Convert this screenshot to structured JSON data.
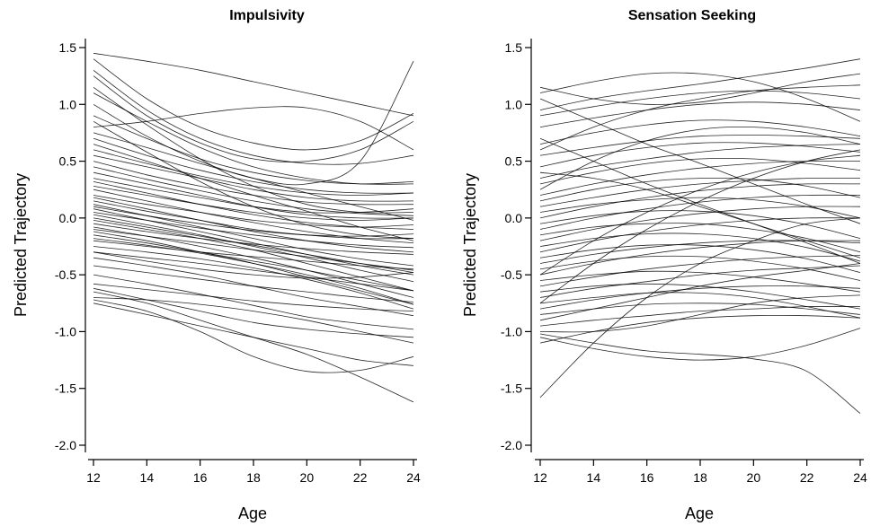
{
  "chart_data": [
    {
      "type": "line",
      "title": "Impulsivity",
      "xlabel": "Age",
      "ylabel": "Predicted Trajectory",
      "xlim": [
        12,
        24
      ],
      "ylim": [
        -2.0,
        1.5
      ],
      "x_ticks": [
        12,
        14,
        16,
        18,
        20,
        22,
        24
      ],
      "y_ticks": [
        1.5,
        1.0,
        0.5,
        0.0,
        -0.5,
        -1.0,
        -1.5,
        -2.0
      ],
      "y_tick_labels": [
        "1.5",
        "1.0",
        "0.5",
        "0.0",
        "-0.5",
        "-1.0",
        "-1.5",
        "-2.0"
      ],
      "grid": false,
      "x": [
        12,
        14,
        16,
        18,
        20,
        22,
        24
      ],
      "series": [
        {
          "values": [
            1.45,
            1.38,
            1.3,
            1.2,
            1.1,
            1.0,
            0.9
          ]
        },
        {
          "values": [
            1.4,
            1.05,
            0.8,
            0.66,
            0.6,
            0.68,
            0.92
          ]
        },
        {
          "values": [
            1.3,
            0.95,
            0.7,
            0.55,
            0.48,
            0.48,
            0.55
          ]
        },
        {
          "values": [
            1.25,
            0.9,
            0.66,
            0.52,
            0.5,
            0.6,
            0.85
          ]
        },
        {
          "values": [
            0.8,
            0.85,
            0.92,
            0.97,
            0.97,
            0.85,
            0.6
          ]
        },
        {
          "values": [
            1.0,
            0.72,
            0.5,
            0.35,
            0.3,
            0.5,
            1.38
          ]
        },
        {
          "values": [
            0.9,
            0.7,
            0.52,
            0.4,
            0.33,
            0.3,
            0.32
          ]
        },
        {
          "values": [
            0.7,
            0.55,
            0.42,
            0.32,
            0.25,
            0.22,
            0.22
          ]
        },
        {
          "values": [
            0.6,
            0.48,
            0.37,
            0.28,
            0.22,
            0.2,
            0.22
          ]
        },
        {
          "values": [
            0.55,
            0.45,
            0.35,
            0.25,
            0.18,
            0.15,
            0.15
          ]
        },
        {
          "values": [
            0.5,
            0.38,
            0.28,
            0.2,
            0.14,
            0.12,
            0.12
          ]
        },
        {
          "values": [
            0.45,
            0.34,
            0.24,
            0.15,
            0.08,
            0.04,
            0.02
          ]
        },
        {
          "values": [
            0.4,
            0.3,
            0.2,
            0.1,
            0.03,
            0.0,
            0.0
          ]
        },
        {
          "values": [
            0.35,
            0.26,
            0.18,
            0.1,
            0.05,
            0.05,
            0.08
          ]
        },
        {
          "values": [
            0.32,
            0.22,
            0.12,
            0.03,
            -0.04,
            -0.08,
            -0.1
          ]
        },
        {
          "values": [
            0.28,
            0.2,
            0.12,
            0.05,
            0.0,
            -0.02,
            0.0
          ]
        },
        {
          "values": [
            0.25,
            0.15,
            0.05,
            -0.04,
            -0.12,
            -0.18,
            -0.22
          ]
        },
        {
          "values": [
            0.2,
            0.12,
            0.05,
            -0.02,
            -0.06,
            -0.08,
            -0.06
          ]
        },
        {
          "values": [
            0.18,
            0.08,
            -0.02,
            -0.12,
            -0.2,
            -0.26,
            -0.3
          ]
        },
        {
          "values": [
            0.15,
            0.06,
            -0.02,
            -0.1,
            -0.15,
            -0.18,
            -0.18
          ]
        },
        {
          "values": [
            0.12,
            0.02,
            -0.08,
            -0.18,
            -0.28,
            -0.36,
            -0.42
          ]
        },
        {
          "values": [
            0.1,
            0.02,
            -0.05,
            -0.11,
            -0.15,
            -0.16,
            -0.14
          ]
        },
        {
          "values": [
            0.08,
            -0.02,
            -0.12,
            -0.22,
            -0.32,
            -0.42,
            -0.5
          ]
        },
        {
          "values": [
            0.05,
            -0.02,
            -0.09,
            -0.15,
            -0.2,
            -0.24,
            -0.26
          ]
        },
        {
          "values": [
            0.03,
            -0.06,
            -0.15,
            -0.25,
            -0.35,
            -0.46,
            -0.56
          ]
        },
        {
          "values": [
            0.0,
            -0.08,
            -0.16,
            -0.24,
            -0.32,
            -0.4,
            -0.48
          ]
        },
        {
          "values": [
            -0.02,
            -0.1,
            -0.18,
            -0.28,
            -0.4,
            -0.52,
            -0.64
          ]
        },
        {
          "values": [
            -0.05,
            -0.12,
            -0.18,
            -0.23,
            -0.27,
            -0.3,
            -0.32
          ]
        },
        {
          "values": [
            -0.08,
            -0.16,
            -0.25,
            -0.35,
            -0.46,
            -0.58,
            -0.7
          ]
        },
        {
          "values": [
            -0.1,
            -0.16,
            -0.22,
            -0.28,
            -0.34,
            -0.4,
            -0.46
          ]
        },
        {
          "values": [
            -0.12,
            -0.2,
            -0.3,
            -0.4,
            -0.52,
            -0.64,
            -0.76
          ]
        },
        {
          "values": [
            -0.15,
            -0.22,
            -0.3,
            -0.38,
            -0.46,
            -0.55,
            -0.64
          ]
        },
        {
          "values": [
            -0.18,
            -0.24,
            -0.31,
            -0.4,
            -0.5,
            -0.62,
            -0.76
          ]
        },
        {
          "values": [
            -0.2,
            -0.25,
            -0.3,
            -0.34,
            -0.38,
            -0.42,
            -0.45
          ]
        },
        {
          "values": [
            -0.25,
            -0.3,
            -0.36,
            -0.44,
            -0.54,
            -0.66,
            -0.8
          ]
        },
        {
          "values": [
            -0.3,
            -0.35,
            -0.4,
            -0.46,
            -0.52,
            -0.58,
            -0.64
          ]
        },
        {
          "values": [
            -0.35,
            -0.42,
            -0.5,
            -0.6,
            -0.7,
            -0.78,
            -0.86
          ]
        },
        {
          "values": [
            -0.42,
            -0.48,
            -0.54,
            -0.6,
            -0.65,
            -0.7,
            -0.74
          ]
        },
        {
          "values": [
            -0.5,
            -0.58,
            -0.67,
            -0.77,
            -0.87,
            -0.93,
            -0.98
          ]
        },
        {
          "values": [
            -0.58,
            -0.63,
            -0.68,
            -0.73,
            -0.77,
            -0.8,
            -0.82
          ]
        },
        {
          "values": [
            -0.62,
            -0.72,
            -0.82,
            -0.92,
            -0.98,
            -1.02,
            -1.05
          ]
        },
        {
          "values": [
            -0.65,
            -0.75,
            -0.9,
            -1.05,
            -1.2,
            -1.4,
            -1.62
          ]
        },
        {
          "values": [
            -0.7,
            -0.72,
            -0.76,
            -0.82,
            -0.9,
            -1.0,
            -1.1
          ]
        },
        {
          "values": [
            -0.72,
            -0.82,
            -1.0,
            -1.22,
            -1.35,
            -1.34,
            -1.22
          ]
        },
        {
          "values": [
            -0.75,
            -0.85,
            -0.95,
            -1.05,
            -1.15,
            -1.25,
            -1.3
          ]
        },
        {
          "values": [
            -0.3,
            -0.38,
            -0.45,
            -0.5,
            -0.53,
            -0.52,
            -0.48
          ]
        },
        {
          "values": [
            0.75,
            0.62,
            0.48,
            0.35,
            0.22,
            0.1,
            -0.02
          ]
        },
        {
          "values": [
            0.65,
            0.5,
            0.35,
            0.2,
            0.06,
            -0.08,
            -0.2
          ]
        },
        {
          "values": [
            1.1,
            0.85,
            0.62,
            0.45,
            0.35,
            0.3,
            0.3
          ]
        },
        {
          "values": [
            1.15,
            0.82,
            0.52,
            0.28,
            0.12,
            0.05,
            0.05
          ]
        },
        {
          "values": [
            0.85,
            0.58,
            0.32,
            0.1,
            -0.06,
            -0.15,
            -0.18
          ]
        }
      ]
    },
    {
      "type": "line",
      "title": "Sensation Seeking",
      "xlabel": "Age",
      "ylabel": "Predicted Trajectory",
      "xlim": [
        12,
        24
      ],
      "ylim": [
        -2.0,
        1.5
      ],
      "x_ticks": [
        12,
        14,
        16,
        18,
        20,
        22,
        24
      ],
      "y_ticks": [
        1.5,
        1.0,
        0.5,
        0.0,
        -0.5,
        -1.0,
        -1.5,
        -2.0
      ],
      "y_tick_labels": [
        "1.5",
        "1.0",
        "0.5",
        "0.0",
        "-0.5",
        "-1.0",
        "-1.5",
        "-2.0"
      ],
      "grid": false,
      "x": [
        12,
        14,
        16,
        18,
        20,
        22,
        24
      ],
      "series": [
        {
          "values": [
            1.1,
            1.2,
            1.27,
            1.27,
            1.2,
            1.05,
            0.85
          ]
        },
        {
          "values": [
            0.95,
            1.05,
            1.12,
            1.18,
            1.25,
            1.32,
            1.4
          ]
        },
        {
          "values": [
            1.15,
            1.05,
            1.0,
            1.02,
            1.1,
            1.2,
            1.27
          ]
        },
        {
          "values": [
            0.9,
            0.98,
            1.05,
            1.1,
            1.12,
            1.1,
            1.05
          ]
        },
        {
          "values": [
            0.8,
            0.88,
            0.95,
            1.0,
            1.02,
            1.0,
            0.95
          ]
        },
        {
          "values": [
            0.65,
            0.75,
            0.82,
            0.86,
            0.85,
            0.8,
            0.72
          ]
        },
        {
          "values": [
            0.55,
            0.62,
            0.68,
            0.72,
            0.73,
            0.72,
            0.7
          ]
        },
        {
          "values": [
            0.45,
            0.55,
            0.62,
            0.66,
            0.66,
            0.63,
            0.58
          ]
        },
        {
          "values": [
            0.35,
            0.45,
            0.52,
            0.58,
            0.62,
            0.64,
            0.65
          ]
        },
        {
          "values": [
            0.3,
            0.4,
            0.48,
            0.52,
            0.52,
            0.48,
            0.42
          ]
        },
        {
          "values": [
            0.2,
            0.3,
            0.38,
            0.44,
            0.48,
            0.5,
            0.5
          ]
        },
        {
          "values": [
            0.15,
            0.25,
            0.32,
            0.35,
            0.34,
            0.28,
            0.18
          ]
        },
        {
          "values": [
            0.1,
            0.18,
            0.25,
            0.3,
            0.33,
            0.35,
            0.35
          ]
        },
        {
          "values": [
            0.05,
            0.12,
            0.16,
            0.18,
            0.16,
            0.1,
            0.0
          ]
        },
        {
          "values": [
            0.0,
            0.1,
            0.18,
            0.24,
            0.28,
            0.3,
            0.3
          ]
        },
        {
          "values": [
            -0.05,
            0.02,
            0.06,
            0.06,
            0.02,
            -0.06,
            -0.18
          ]
        },
        {
          "values": [
            -0.1,
            0.0,
            0.08,
            0.14,
            0.18,
            0.2,
            0.2
          ]
        },
        {
          "values": [
            -0.15,
            -0.08,
            -0.05,
            -0.05,
            -0.1,
            -0.18,
            -0.3
          ]
        },
        {
          "values": [
            -0.2,
            -0.1,
            -0.02,
            0.04,
            0.08,
            0.1,
            0.1
          ]
        },
        {
          "values": [
            -0.25,
            -0.18,
            -0.14,
            -0.14,
            -0.18,
            -0.26,
            -0.38
          ]
        },
        {
          "values": [
            -0.3,
            -0.2,
            -0.12,
            -0.06,
            -0.02,
            0.0,
            0.0
          ]
        },
        {
          "values": [
            -0.35,
            -0.28,
            -0.24,
            -0.24,
            -0.28,
            -0.36,
            -0.48
          ]
        },
        {
          "values": [
            -0.4,
            -0.32,
            -0.26,
            -0.22,
            -0.2,
            -0.2,
            -0.22
          ]
        },
        {
          "values": [
            -0.45,
            -0.38,
            -0.34,
            -0.34,
            -0.38,
            -0.45,
            -0.55
          ]
        },
        {
          "values": [
            -0.5,
            -0.4,
            -0.32,
            -0.26,
            -0.22,
            -0.2,
            -0.2
          ]
        },
        {
          "values": [
            -0.55,
            -0.5,
            -0.47,
            -0.48,
            -0.52,
            -0.58,
            -0.65
          ]
        },
        {
          "values": [
            -0.6,
            -0.52,
            -0.45,
            -0.4,
            -0.36,
            -0.34,
            -0.33
          ]
        },
        {
          "values": [
            -0.65,
            -0.6,
            -0.58,
            -0.6,
            -0.65,
            -0.72,
            -0.8
          ]
        },
        {
          "values": [
            -0.7,
            -0.62,
            -0.56,
            -0.5,
            -0.46,
            -0.44,
            -0.42
          ]
        },
        {
          "values": [
            -0.75,
            -0.7,
            -0.66,
            -0.66,
            -0.7,
            -0.78,
            -0.88
          ]
        },
        {
          "values": [
            -0.8,
            -0.72,
            -0.66,
            -0.62,
            -0.6,
            -0.6,
            -0.62
          ]
        },
        {
          "values": [
            -0.85,
            -0.8,
            -0.76,
            -0.75,
            -0.76,
            -0.8,
            -0.85
          ]
        },
        {
          "values": [
            -0.9,
            -0.8,
            -0.7,
            -0.6,
            -0.52,
            -0.46,
            -0.4
          ]
        },
        {
          "values": [
            -0.95,
            -0.9,
            -0.86,
            -0.82,
            -0.8,
            -0.78,
            -0.78
          ]
        },
        {
          "values": [
            -1.0,
            -1.0,
            -0.95,
            -0.85,
            -0.75,
            -0.7,
            -0.68
          ]
        },
        {
          "values": [
            -1.02,
            -1.1,
            -1.17,
            -1.2,
            -1.24,
            -1.35,
            -1.72
          ]
        },
        {
          "values": [
            -1.05,
            -1.15,
            -1.22,
            -1.25,
            -1.22,
            -1.12,
            -0.97
          ]
        },
        {
          "values": [
            -1.1,
            -1.0,
            -0.92,
            -0.88,
            -0.86,
            -0.86,
            -0.88
          ]
        },
        {
          "values": [
            -1.58,
            -1.1,
            -0.7,
            -0.4,
            -0.2,
            -0.05,
            0.0
          ]
        },
        {
          "values": [
            1.05,
            0.85,
            0.65,
            0.48,
            0.3,
            0.12,
            -0.05
          ]
        },
        {
          "values": [
            0.7,
            0.5,
            0.3,
            0.12,
            -0.05,
            -0.22,
            -0.4
          ]
        },
        {
          "values": [
            0.4,
            0.35,
            0.25,
            0.1,
            -0.05,
            -0.2,
            -0.35
          ]
        },
        {
          "values": [
            -0.75,
            -0.4,
            -0.1,
            0.15,
            0.35,
            0.5,
            0.6
          ]
        },
        {
          "values": [
            -0.5,
            -0.2,
            0.05,
            0.25,
            0.4,
            0.5,
            0.55
          ]
        },
        {
          "values": [
            0.25,
            0.5,
            0.68,
            0.78,
            0.8,
            0.75,
            0.65
          ]
        },
        {
          "values": [
            0.6,
            0.8,
            0.95,
            1.05,
            1.12,
            1.15,
            1.17
          ]
        }
      ]
    }
  ]
}
